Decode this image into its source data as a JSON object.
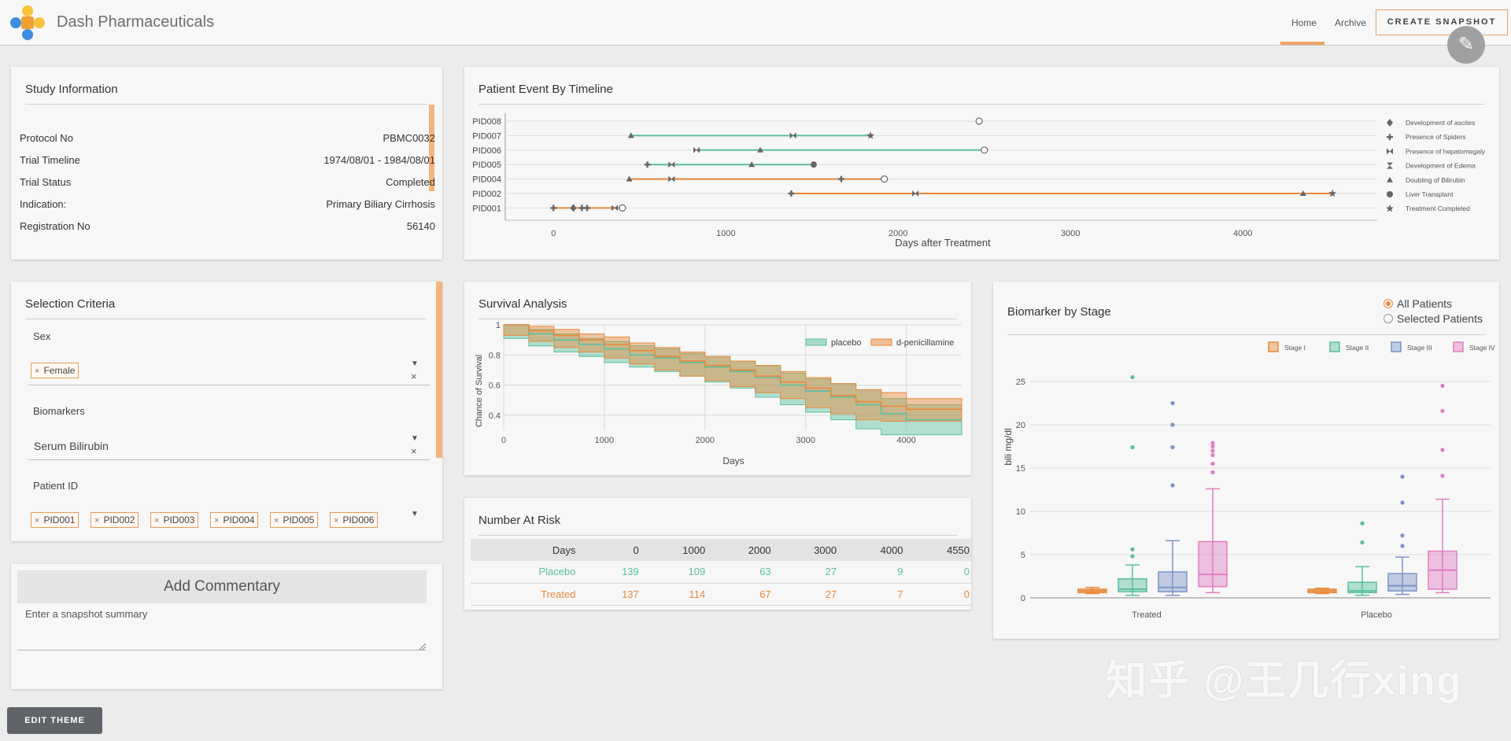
{
  "header": {
    "app_title": "Dash Pharmaceuticals",
    "nav": [
      "Home",
      "Archive"
    ],
    "snapshot_button": "CREATE SNAPSHOT",
    "logo_colors": [
      "#f8c33b",
      "#3c8ddf",
      "#3c8ddf",
      "#f8c33b"
    ]
  },
  "study": {
    "title": "Study Information",
    "rows": [
      {
        "label": "Protocol No",
        "value": "PBMC0032"
      },
      {
        "label": "Trial Timeline",
        "value": "1974/08/01 - 1984/08/01"
      },
      {
        "label": "Trial Status",
        "value": "Completed"
      },
      {
        "label": "Indication:",
        "value": "Primary Biliary Cirrhosis"
      },
      {
        "label": "Registration No",
        "value": "56140"
      }
    ]
  },
  "selection": {
    "title": "Selection Criteria",
    "sex_label": "Sex",
    "sex_tag": "Female",
    "biomarkers_label": "Biomarkers",
    "biomarker_value": "Serum Bilirubin",
    "patient_label": "Patient ID",
    "patient_tags": [
      "PID001",
      "PID002",
      "PID003",
      "PID004",
      "PID005",
      "PID006"
    ],
    "tag_x": "×",
    "clear_x": "×",
    "arrow": "▼"
  },
  "commentary": {
    "title": "Add Commentary",
    "placeholder": "Enter a snapshot summary"
  },
  "edit_theme": "EDIT THEME",
  "timeline": {
    "title": "Patient Event By Timeline",
    "xlabel": "Days after Treatment",
    "xticks": [
      "0",
      "1000",
      "2000",
      "3000",
      "4000"
    ],
    "patients": [
      "PID008",
      "PID007",
      "PID006",
      "PID005",
      "PID004",
      "PID002",
      "PID001"
    ],
    "legend": [
      {
        "icon": "diamond",
        "label": "Development of ascites"
      },
      {
        "icon": "plus",
        "label": "Presence of Spiders"
      },
      {
        "icon": "bowtie",
        "label": "Presence of hepatomegaly"
      },
      {
        "icon": "hourglass",
        "label": "Development of Edema"
      },
      {
        "icon": "triangle",
        "label": "Doubling of Bilirubin"
      },
      {
        "icon": "circle",
        "label": "Liver Transplant"
      },
      {
        "icon": "star",
        "label": "Treatment Completed"
      }
    ]
  },
  "survival": {
    "title": "Survival Analysis",
    "xlabel": "Days",
    "ylabel": "Chance of Survival",
    "xticks": [
      "0",
      "1000",
      "2000",
      "3000",
      "4000"
    ],
    "yticks": [
      "1",
      "0.8",
      "0.6",
      "0.4"
    ],
    "legend": [
      "placebo",
      "d-penicillamine"
    ]
  },
  "risk": {
    "title": "Number At Risk",
    "headers": [
      "Days",
      "0",
      "1000",
      "2000",
      "3000",
      "4000",
      "4550"
    ],
    "rows": [
      [
        "Placebo",
        "139",
        "109",
        "63",
        "27",
        "9",
        "0"
      ],
      [
        "Treated",
        "137",
        "114",
        "67",
        "27",
        "7",
        "0"
      ]
    ]
  },
  "biomarker": {
    "title": "Biomarker by Stage",
    "radio": [
      "All Patients",
      "Selected Patients"
    ],
    "ylabel": "bili mg/dl",
    "yticks": [
      "25",
      "20",
      "15",
      "10",
      "5",
      "0"
    ],
    "groups": [
      "Treated",
      "Placebo"
    ],
    "legend": [
      "Stage I",
      "Stage II",
      "Stage III",
      "Stage IV"
    ]
  },
  "colors": {
    "orange": "#e8883a",
    "green": "#5cbf9f",
    "blue": "#7e93c8",
    "pink": "#e07fc2"
  },
  "watermark": "知乎 @王几行xing",
  "chart_data": [
    {
      "type": "scatter",
      "title": "Patient Event By Timeline",
      "xlabel": "Days after Treatment",
      "ylabel": "",
      "xlim": [
        -280,
        4780
      ],
      "categories": [
        "PID001",
        "PID002",
        "PID004",
        "PID005",
        "PID006",
        "PID007",
        "PID008"
      ],
      "series": [
        {
          "category": "PID008",
          "color": "#5cbf9f",
          "events": [
            {
              "x": 2470,
              "icon": "circle-open"
            }
          ]
        },
        {
          "category": "PID007",
          "color": "#5cbf9f",
          "range": [
            450,
            1840
          ],
          "events": [
            {
              "x": 450,
              "icon": "triangle"
            },
            {
              "x": 1390,
              "icon": "bowtie"
            },
            {
              "x": 1840,
              "icon": "star"
            }
          ]
        },
        {
          "category": "PID006",
          "color": "#5cbf9f",
          "range": [
            830,
            2500
          ],
          "events": [
            {
              "x": 830,
              "icon": "bowtie"
            },
            {
              "x": 1200,
              "icon": "triangle"
            },
            {
              "x": 2500,
              "icon": "circle-open"
            }
          ]
        },
        {
          "category": "PID005",
          "color": "#5cbf9f",
          "range": [
            545,
            1510
          ],
          "events": [
            {
              "x": 545,
              "icon": "plus"
            },
            {
              "x": 685,
              "icon": "bowtie"
            },
            {
              "x": 1150,
              "icon": "triangle"
            },
            {
              "x": 1510,
              "icon": "circle"
            }
          ]
        },
        {
          "category": "PID004",
          "color": "#e8883a",
          "range": [
            440,
            1920
          ],
          "events": [
            {
              "x": 440,
              "icon": "triangle"
            },
            {
              "x": 685,
              "icon": "bowtie"
            },
            {
              "x": 1670,
              "icon": "plus"
            },
            {
              "x": 1920,
              "icon": "circle-open"
            }
          ]
        },
        {
          "category": "PID002",
          "color": "#e8883a",
          "range": [
            1380,
            4520
          ],
          "events": [
            {
              "x": 1380,
              "icon": "plus"
            },
            {
              "x": 2100,
              "icon": "bowtie"
            },
            {
              "x": 4350,
              "icon": "triangle"
            },
            {
              "x": 4520,
              "icon": "star"
            }
          ]
        },
        {
          "category": "PID001",
          "color": "#e8883a",
          "range": [
            0,
            400
          ],
          "events": [
            {
              "x": 0,
              "icon": "plus"
            },
            {
              "x": 115,
              "icon": "diamond"
            },
            {
              "x": 165,
              "icon": "plus"
            },
            {
              "x": 195,
              "icon": "plus"
            },
            {
              "x": 355,
              "icon": "bowtie"
            },
            {
              "x": 400,
              "icon": "circle-open"
            }
          ]
        }
      ]
    },
    {
      "type": "area",
      "title": "Survival Analysis",
      "xlabel": "Days",
      "ylabel": "Chance of Survival",
      "xlim": [
        0,
        4550
      ],
      "ylim": [
        0.3,
        1.0
      ],
      "x": [
        0,
        250,
        500,
        750,
        1000,
        1250,
        1500,
        1750,
        2000,
        2250,
        2500,
        2750,
        3000,
        3250,
        3500,
        3750,
        4000,
        4550
      ],
      "series": [
        {
          "name": "placebo",
          "color": "#5cbf9f",
          "values": [
            1.0,
            0.94,
            0.9,
            0.87,
            0.84,
            0.8,
            0.78,
            0.75,
            0.72,
            0.69,
            0.65,
            0.6,
            0.56,
            0.52,
            0.47,
            0.41,
            0.37,
            0.37
          ],
          "upper": [
            1.0,
            0.97,
            0.94,
            0.91,
            0.89,
            0.86,
            0.84,
            0.81,
            0.79,
            0.76,
            0.73,
            0.68,
            0.64,
            0.61,
            0.57,
            0.51,
            0.47,
            0.47
          ],
          "lower": [
            1.0,
            0.91,
            0.86,
            0.82,
            0.79,
            0.75,
            0.72,
            0.69,
            0.66,
            0.62,
            0.58,
            0.52,
            0.47,
            0.42,
            0.37,
            0.31,
            0.27,
            0.27
          ]
        },
        {
          "name": "d-penicillamine",
          "color": "#e8883a",
          "values": [
            1.0,
            0.96,
            0.93,
            0.9,
            0.87,
            0.83,
            0.79,
            0.76,
            0.73,
            0.7,
            0.66,
            0.62,
            0.58,
            0.53,
            0.49,
            0.46,
            0.44,
            0.44
          ],
          "upper": [
            1.0,
            0.99,
            0.97,
            0.94,
            0.92,
            0.88,
            0.85,
            0.82,
            0.79,
            0.76,
            0.73,
            0.69,
            0.65,
            0.61,
            0.57,
            0.55,
            0.51,
            0.51
          ],
          "lower": [
            1.0,
            0.93,
            0.89,
            0.85,
            0.82,
            0.78,
            0.74,
            0.7,
            0.66,
            0.63,
            0.59,
            0.55,
            0.51,
            0.45,
            0.41,
            0.37,
            0.36,
            0.36
          ]
        }
      ]
    },
    {
      "type": "box",
      "title": "Biomarker by Stage",
      "xlabel": "",
      "ylabel": "bili mg/dl",
      "ylim": [
        0,
        27
      ],
      "categories": [
        "Treated",
        "Placebo"
      ],
      "series": [
        {
          "name": "Stage I",
          "color": "#e8883a",
          "boxes": [
            {
              "min": 0.5,
              "q1": 0.6,
              "median": 0.8,
              "q3": 1.0,
              "max": 1.2,
              "outliers": []
            },
            {
              "min": 0.5,
              "q1": 0.6,
              "median": 0.8,
              "q3": 1.0,
              "max": 1.1,
              "outliers": []
            }
          ]
        },
        {
          "name": "Stage II",
          "color": "#5cbf9f",
          "boxes": [
            {
              "min": 0.3,
              "q1": 0.7,
              "median": 1.0,
              "q3": 2.2,
              "max": 3.8,
              "outliers": [
                4.8,
                5.6,
                17.4,
                25.5
              ]
            },
            {
              "min": 0.3,
              "q1": 0.6,
              "median": 0.8,
              "q3": 1.8,
              "max": 3.6,
              "outliers": [
                6.4,
                8.6
              ]
            }
          ]
        },
        {
          "name": "Stage III",
          "color": "#7e93c8",
          "boxes": [
            {
              "min": 0.3,
              "q1": 0.7,
              "median": 1.2,
              "q3": 3.0,
              "max": 6.6,
              "outliers": [
                13.0,
                17.4,
                20.0,
                22.5
              ]
            },
            {
              "min": 0.4,
              "q1": 0.8,
              "median": 1.4,
              "q3": 2.8,
              "max": 4.7,
              "outliers": [
                6.0,
                7.2,
                11.0,
                14.0
              ]
            }
          ]
        },
        {
          "name": "Stage IV",
          "color": "#e07fc2",
          "boxes": [
            {
              "min": 0.6,
              "q1": 1.3,
              "median": 2.7,
              "q3": 6.5,
              "max": 12.6,
              "outliers": [
                14.5,
                15.5,
                16.5,
                17.0,
                17.5,
                17.9
              ]
            },
            {
              "min": 0.6,
              "q1": 1.0,
              "median": 3.2,
              "q3": 5.4,
              "max": 11.4,
              "outliers": [
                14.1,
                17.1,
                21.6,
                24.5
              ]
            }
          ]
        }
      ]
    }
  ]
}
